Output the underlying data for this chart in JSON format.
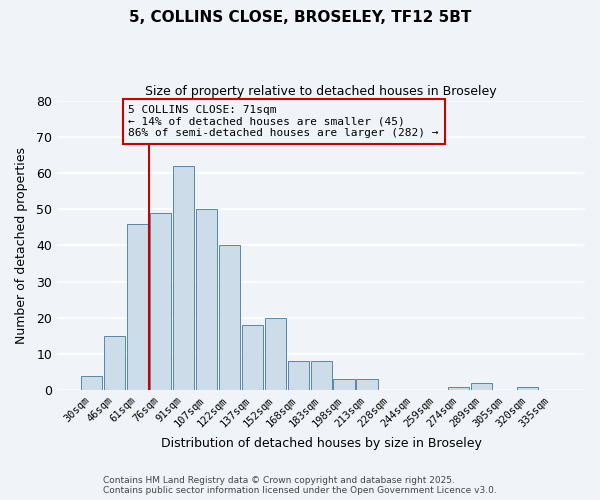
{
  "title": "5, COLLINS CLOSE, BROSELEY, TF12 5BT",
  "subtitle": "Size of property relative to detached houses in Broseley",
  "xlabel": "Distribution of detached houses by size in Broseley",
  "ylabel": "Number of detached properties",
  "bar_color": "#ccdce8",
  "bar_edgecolor": "#5588aa",
  "background_color": "#f0f4f8",
  "grid_color": "#ffffff",
  "categories": [
    "30sqm",
    "46sqm",
    "61sqm",
    "76sqm",
    "91sqm",
    "107sqm",
    "122sqm",
    "137sqm",
    "152sqm",
    "168sqm",
    "183sqm",
    "198sqm",
    "213sqm",
    "228sqm",
    "244sqm",
    "259sqm",
    "274sqm",
    "289sqm",
    "305sqm",
    "320sqm",
    "335sqm"
  ],
  "values": [
    4,
    15,
    46,
    49,
    62,
    50,
    40,
    18,
    20,
    8,
    8,
    3,
    3,
    0,
    0,
    0,
    1,
    2,
    0,
    1,
    0
  ],
  "ylim": [
    0,
    80
  ],
  "yticks": [
    0,
    10,
    20,
    30,
    40,
    50,
    60,
    70,
    80
  ],
  "vline_index": 2.5,
  "vline_color": "#cc0000",
  "annotation_title": "5 COLLINS CLOSE: 71sqm",
  "annotation_line1": "← 14% of detached houses are smaller (45)",
  "annotation_line2": "86% of semi-detached houses are larger (282) →",
  "annotation_box_color": "#cc0000",
  "footer_line1": "Contains HM Land Registry data © Crown copyright and database right 2025.",
  "footer_line2": "Contains public sector information licensed under the Open Government Licence v3.0."
}
